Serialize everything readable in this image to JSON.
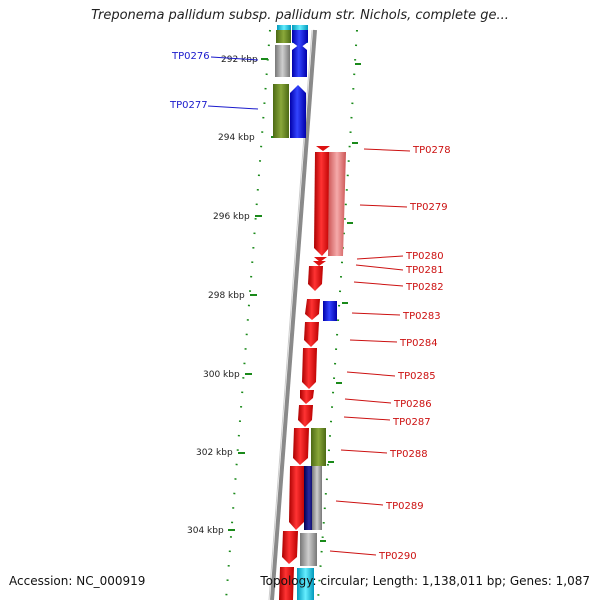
{
  "title": "Treponema pallidum subsp. pallidum str. Nichols, complete ge...",
  "footer": {
    "accession": "Accession: NC_000919",
    "summary": "Topology: circular; Length: 1,138,011 bp; Genes: 1,087"
  },
  "scale_labels": [
    "292 kbp",
    "294 kbp",
    "296 kbp",
    "298 kbp",
    "300 kbp",
    "302 kbp",
    "304 kbp"
  ],
  "genes_left": [
    {
      "id": "TP0276",
      "color": "#1a1acc"
    },
    {
      "id": "TP0277",
      "color": "#1a1acc"
    }
  ],
  "genes_right": [
    {
      "id": "TP0278",
      "color": "#cc1111"
    },
    {
      "id": "TP0279",
      "color": "#cc1111"
    },
    {
      "id": "TP0280",
      "color": "#cc1111"
    },
    {
      "id": "TP0281",
      "color": "#cc1111"
    },
    {
      "id": "TP0282",
      "color": "#cc1111"
    },
    {
      "id": "TP0283",
      "color": "#cc1111"
    },
    {
      "id": "TP0284",
      "color": "#cc1111"
    },
    {
      "id": "TP0285",
      "color": "#cc1111"
    },
    {
      "id": "TP0286",
      "color": "#cc1111"
    },
    {
      "id": "TP0287",
      "color": "#cc1111"
    },
    {
      "id": "TP0288",
      "color": "#cc1111"
    },
    {
      "id": "TP0289",
      "color": "#cc1111"
    },
    {
      "id": "TP0290",
      "color": "#cc1111"
    }
  ],
  "colors": {
    "forward_red": "#ee1111",
    "reverse_blue": "#0000ee",
    "olive": "#6b8e23",
    "gray": "#9a9a9a",
    "pink": "#ee8888",
    "navy": "#000080",
    "cyan": "#00ccee",
    "tick_green": "#1a8a1a",
    "backbone": "#888888"
  }
}
